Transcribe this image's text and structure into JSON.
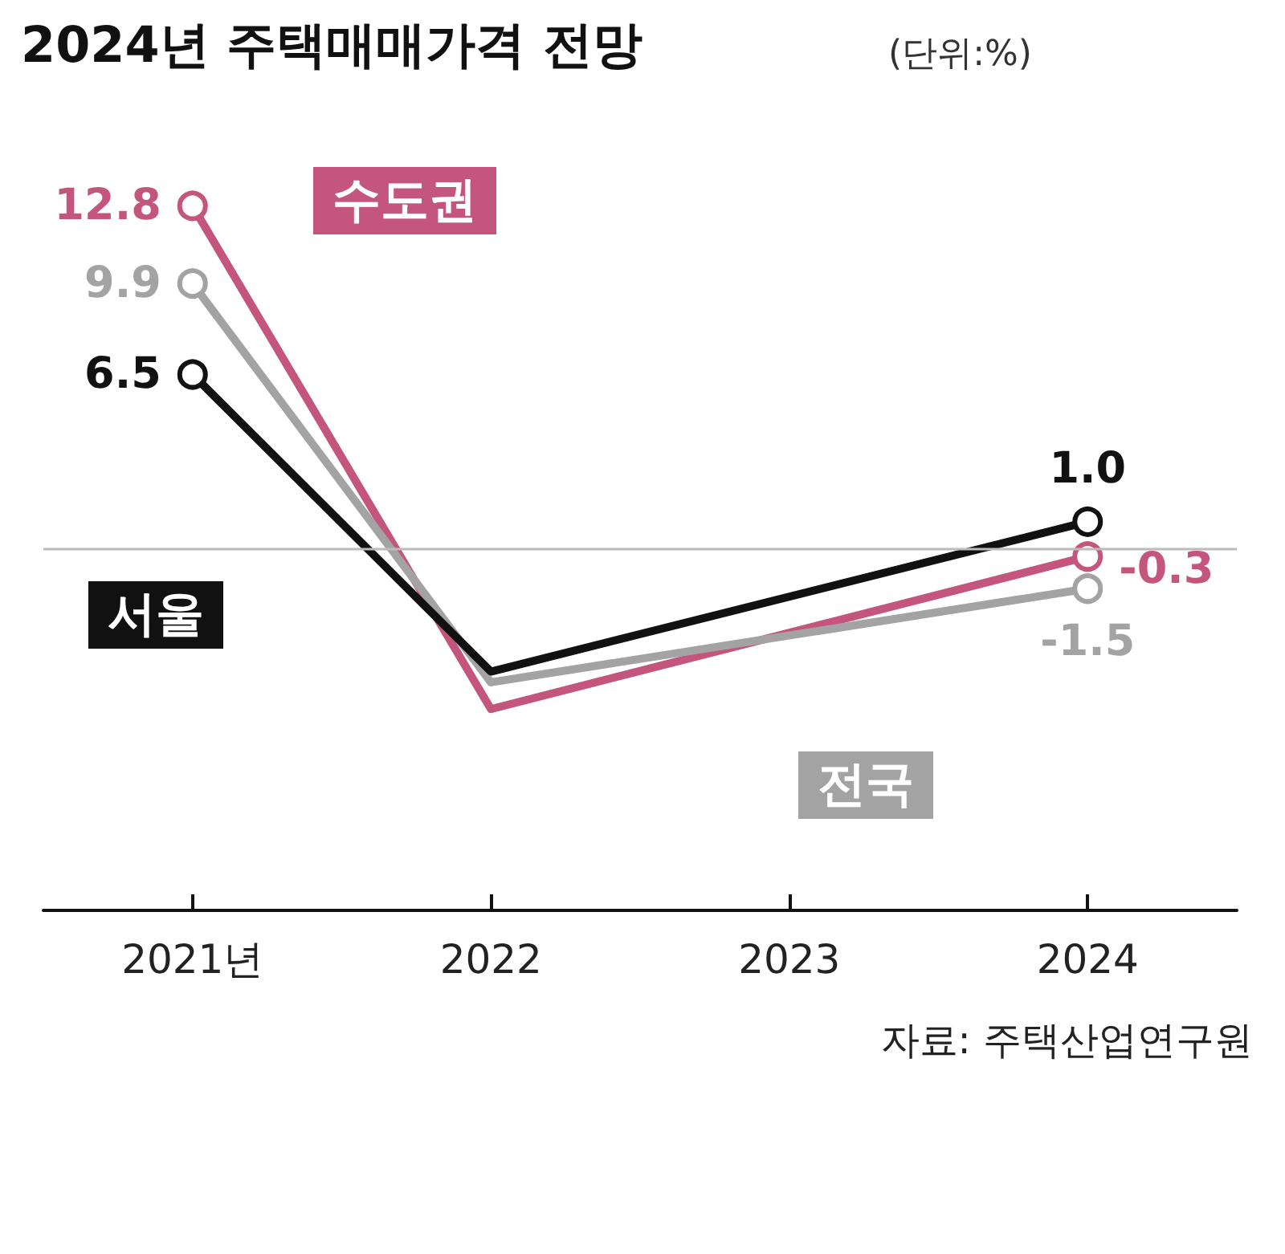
{
  "chart_data": {
    "type": "line",
    "title": "2024년 주택매매가격 전망",
    "subtitle": "(단위:%)",
    "categories": [
      "2021년",
      "2022",
      "2023",
      "2024"
    ],
    "series": [
      {
        "name": "수도권",
        "color": "#c4557c",
        "values": [
          12.8,
          -6.0,
          null,
          -0.3
        ],
        "value_labels": [
          "12.8",
          null,
          null,
          "-0.3"
        ]
      },
      {
        "name": "전국",
        "color": "#a3a3a3",
        "values": [
          9.9,
          -5.0,
          null,
          -1.5
        ],
        "value_labels": [
          "9.9",
          null,
          null,
          "-1.5"
        ]
      },
      {
        "name": "서울",
        "color": "#111111",
        "values": [
          6.5,
          -4.6,
          null,
          1.0
        ],
        "value_labels": [
          "6.5",
          null,
          null,
          "1.0"
        ]
      }
    ],
    "ref_lines": [
      {
        "axis": "y",
        "value": 0,
        "color": "#bbbbbb"
      }
    ],
    "marker": "circle",
    "grid": false,
    "annotations": [
      "자료: 주택산업연구원"
    ]
  }
}
